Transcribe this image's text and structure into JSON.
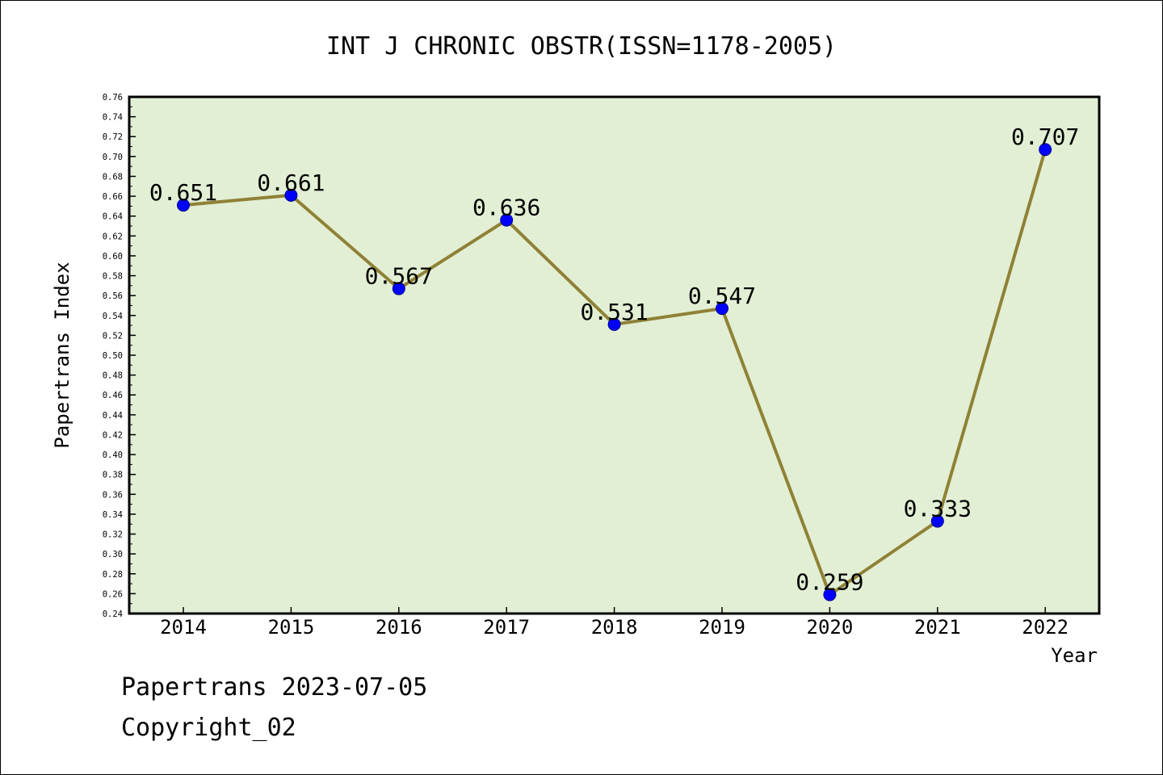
{
  "chart_data": {
    "type": "line",
    "title": "INT J CHRONIC OBSTR(ISSN=1178-2005)",
    "xlabel": "Year",
    "ylabel": "Papertrans Index",
    "categories": [
      "2014",
      "2015",
      "2016",
      "2017",
      "2018",
      "2019",
      "2020",
      "2021",
      "2022"
    ],
    "values": [
      0.651,
      0.661,
      0.567,
      0.636,
      0.531,
      0.547,
      0.259,
      0.333,
      0.707
    ],
    "data_labels": [
      "0.651",
      "0.661",
      "0.567",
      "0.636",
      "0.531",
      "0.547",
      "0.259",
      "0.333",
      "0.707"
    ],
    "ylim": [
      0.24,
      0.76
    ],
    "yticks": [
      "0.24",
      "0.26",
      "0.28",
      "0.30",
      "0.32",
      "0.34",
      "0.36",
      "0.38",
      "0.40",
      "0.42",
      "0.44",
      "0.46",
      "0.48",
      "0.50",
      "0.52",
      "0.54",
      "0.56",
      "0.58",
      "0.60",
      "0.62",
      "0.64",
      "0.66",
      "0.68",
      "0.70",
      "0.72",
      "0.74",
      "0.76"
    ],
    "grid": false,
    "colors": {
      "plot_background": "#e2efd4",
      "line": "#8f8136",
      "marker": "#0000ff"
    }
  },
  "footer": {
    "stamp": "Papertrans 2023-07-05",
    "copyright": "Copyright_02"
  }
}
